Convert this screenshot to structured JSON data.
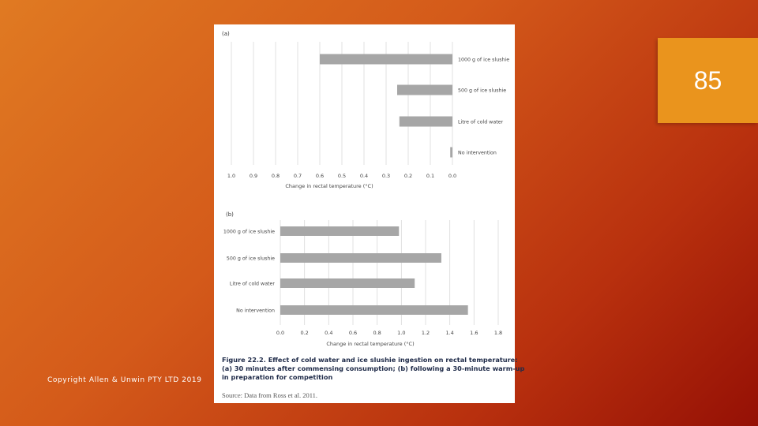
{
  "slide": {
    "page_number": "85",
    "copyright": "Copyright Allen & Unwin PTY LTD 2019"
  },
  "figure": {
    "caption_line1": "Figure 22.2. Effect of cold water and ice slushie ingestion on rectal temperature:",
    "caption_line2": "(a) 30 minutes after commensing consumption; (b) following a 30-minute warm-up",
    "caption_line3": "in preparation for competition",
    "source": "Source: Data from Ross et al. 2011."
  },
  "chart_data": [
    {
      "type": "bar",
      "orientation": "horizontal",
      "panel_label": "(a)",
      "categories": [
        "1000 g of ice slushie",
        "500 g of ice slushie",
        "Litre of cold water",
        "No intervention"
      ],
      "values": [
        0.6,
        0.25,
        0.24,
        0.01
      ],
      "xlabel": "Change in rectal temperature (°C)",
      "xlim": [
        1.0,
        0.0
      ],
      "x_reversed": true,
      "xticks": [
        "1.0",
        "0.9",
        "0.8",
        "0.7",
        "0.6",
        "0.5",
        "0.4",
        "0.3",
        "0.2",
        "0.1",
        "0.0"
      ],
      "grid": true,
      "bar_color": "#a6a6a6"
    },
    {
      "type": "bar",
      "orientation": "horizontal",
      "panel_label": "(b)",
      "categories": [
        "1000 g of ice slushie",
        "500 g of ice slushie",
        "Litre of cold water",
        "No intervention"
      ],
      "values": [
        0.98,
        1.33,
        1.11,
        1.55
      ],
      "xlabel": "Change in rectal temperature (°C)",
      "xlim": [
        0.0,
        1.8
      ],
      "x_reversed": false,
      "xticks": [
        "0.0",
        "0.2",
        "0.4",
        "0.6",
        "0.8",
        "1.0",
        "1.2",
        "1.4",
        "1.6",
        "1.8"
      ],
      "grid": true,
      "bar_color": "#a6a6a6"
    }
  ]
}
